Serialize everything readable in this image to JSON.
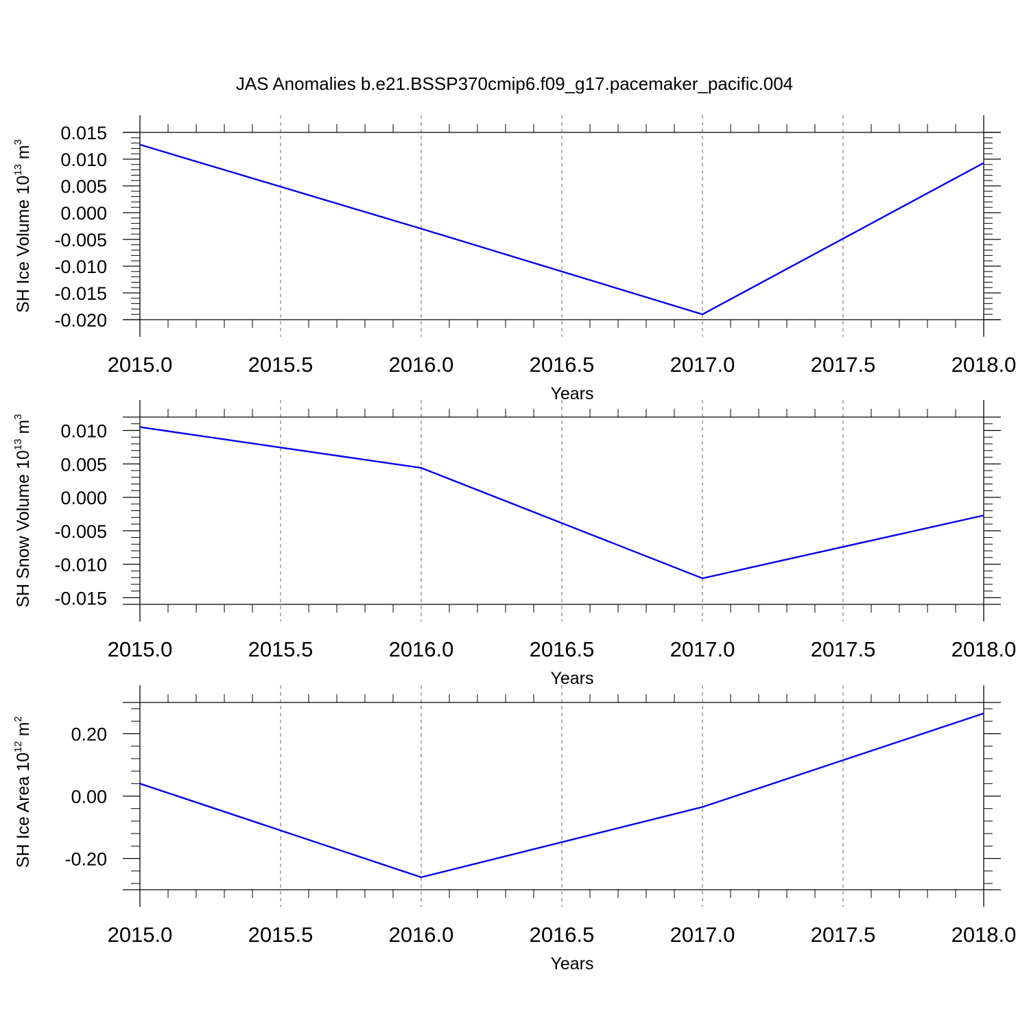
{
  "figure": {
    "title": "JAS Anomalies b.e21.BSSP370cmip6.f09_g17.pacemaker_pacific.004"
  },
  "colors": {
    "series": "#0000ee",
    "axis": "#000000",
    "grid": "#808080",
    "background": "#ffffff"
  },
  "chart_data": [
    {
      "type": "line",
      "x": [
        2015,
        2016,
        2017,
        2018
      ],
      "series": [
        {
          "values": [
            0.0127,
            -0.003,
            -0.019,
            0.0093
          ]
        }
      ],
      "xlim": [
        2015.0,
        2018.0
      ],
      "ylim": [
        -0.02,
        0.015
      ],
      "xticks": [
        2015.0,
        2015.5,
        2016.0,
        2016.5,
        2017.0,
        2017.5,
        2018.0
      ],
      "xtick_labels": [
        "2015.0",
        "2015.5",
        "2016.0",
        "2016.5",
        "2017.0",
        "2017.5",
        "2018.0"
      ],
      "yticks": [
        0.015,
        0.01,
        0.005,
        0.0,
        -0.005,
        -0.01,
        -0.015,
        -0.02
      ],
      "ytick_labels": [
        "0.015",
        "0.010",
        "0.005",
        "0.000",
        "-0.005",
        "-0.010",
        "-0.015",
        "-0.020"
      ],
      "xlabel": "Years",
      "ylabel": "SH Ice Volume 10",
      "ylabel_sup": "13",
      "ylabel_unit": "m",
      "ylabel_unit_sup": "3",
      "vertical_gridlines": true
    },
    {
      "type": "line",
      "x": [
        2015,
        2016,
        2017,
        2018
      ],
      "series": [
        {
          "values": [
            0.0105,
            0.0044,
            -0.0121,
            -0.0027
          ]
        }
      ],
      "xlim": [
        2015.0,
        2018.0
      ],
      "ylim": [
        -0.016,
        0.012
      ],
      "xticks": [
        2015.0,
        2015.5,
        2016.0,
        2016.5,
        2017.0,
        2017.5,
        2018.0
      ],
      "xtick_labels": [
        "2015.0",
        "2015.5",
        "2016.0",
        "2016.5",
        "2017.0",
        "2017.5",
        "2018.0"
      ],
      "yticks": [
        0.01,
        0.005,
        0.0,
        -0.005,
        -0.01,
        -0.015
      ],
      "ytick_labels": [
        "0.010",
        "0.005",
        "0.000",
        "-0.005",
        "-0.010",
        "-0.015"
      ],
      "xlabel": "Years",
      "ylabel": "SH Snow Volume 10",
      "ylabel_sup": "13",
      "ylabel_unit": "m",
      "ylabel_unit_sup": "3",
      "vertical_gridlines": true
    },
    {
      "type": "line",
      "x": [
        2015,
        2016,
        2017,
        2018
      ],
      "series": [
        {
          "values": [
            0.04,
            -0.26,
            -0.035,
            0.265
          ]
        }
      ],
      "xlim": [
        2015.0,
        2018.0
      ],
      "ylim": [
        -0.3,
        0.3
      ],
      "xticks": [
        2015.0,
        2015.5,
        2016.0,
        2016.5,
        2017.0,
        2017.5,
        2018.0
      ],
      "xtick_labels": [
        "2015.0",
        "2015.5",
        "2016.0",
        "2016.5",
        "2017.0",
        "2017.5",
        "2018.0"
      ],
      "yticks": [
        0.2,
        0.0,
        -0.2
      ],
      "ytick_labels": [
        "0.20",
        "0.00",
        "-0.20"
      ],
      "xlabel": "Years",
      "ylabel": "SH Ice Area 10",
      "ylabel_sup": "12",
      "ylabel_unit": "m",
      "ylabel_unit_sup": "2",
      "vertical_gridlines": true
    }
  ]
}
